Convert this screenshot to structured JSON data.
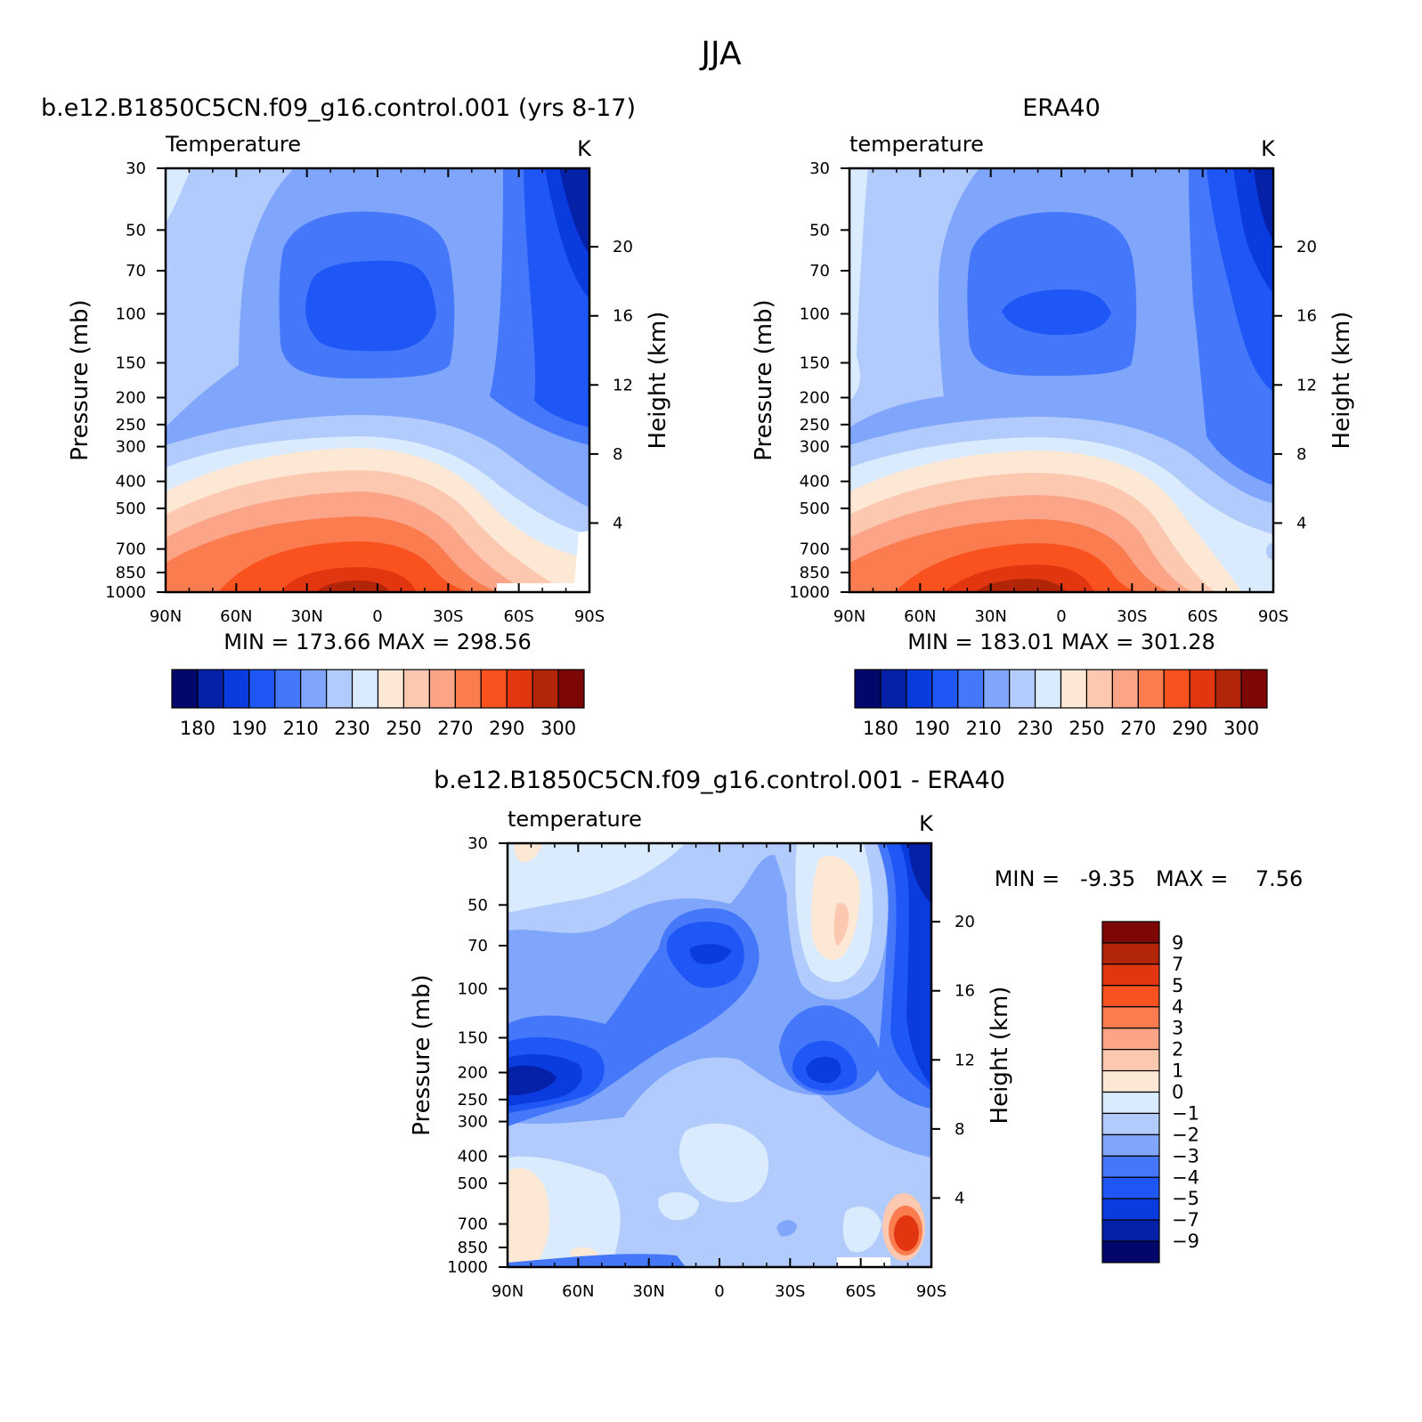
{
  "page_title": "JJA",
  "chart_data": [
    {
      "type": "heatmap",
      "id": "model",
      "case_title": "b.e12.B1850C5CN.f09_g16.control.001 (yrs 8-17)",
      "variable_label": "Temperature",
      "units_label": "K",
      "ylabel": "Pressure (mb)",
      "y2label": "Height (km)",
      "x_ticks": [
        "90N",
        "60N",
        "30N",
        "0",
        "30S",
        "60S",
        "90S"
      ],
      "y_ticks": [
        "30",
        "50",
        "70",
        "100",
        "150",
        "200",
        "250",
        "300",
        "400",
        "500",
        "700",
        "850",
        "1000"
      ],
      "y2_ticks": [
        "20",
        "16",
        "12",
        "8",
        "4"
      ],
      "stats_text": "MIN = 173.66   MAX = 298.56",
      "min": 173.66,
      "max": 298.56,
      "colorbar_labels": [
        "180",
        "190",
        "210",
        "230",
        "250",
        "270",
        "290",
        "300"
      ],
      "colorbar_colors": [
        "#03066a",
        "#0521a8",
        "#0a3bde",
        "#1f56f6",
        "#4477fa",
        "#80a6fc",
        "#b2cbfd",
        "#d9ebfd",
        "#fde7d5",
        "#fcc9b0",
        "#fba487",
        "#fa7c4f",
        "#f9521f",
        "#e1360f",
        "#b32509",
        "#7d0705"
      ],
      "colorbar_levels": [
        180,
        185,
        190,
        200,
        210,
        220,
        230,
        240,
        250,
        260,
        270,
        280,
        290,
        295,
        300
      ]
    },
    {
      "type": "heatmap",
      "id": "obs",
      "case_title": "ERA40",
      "variable_label": "temperature",
      "units_label": "K",
      "ylabel": "Pressure (mb)",
      "y2label": "Height (km)",
      "x_ticks": [
        "90N",
        "60N",
        "30N",
        "0",
        "30S",
        "60S",
        "90S"
      ],
      "y_ticks": [
        "30",
        "50",
        "70",
        "100",
        "150",
        "200",
        "250",
        "300",
        "400",
        "500",
        "700",
        "850",
        "1000"
      ],
      "y2_ticks": [
        "20",
        "16",
        "12",
        "8",
        "4"
      ],
      "stats_text": "MIN = 183.01   MAX = 301.28",
      "min": 183.01,
      "max": 301.28,
      "colorbar_labels": [
        "180",
        "190",
        "210",
        "230",
        "250",
        "270",
        "290",
        "300"
      ],
      "colorbar_colors": [
        "#03066a",
        "#0521a8",
        "#0a3bde",
        "#1f56f6",
        "#4477fa",
        "#80a6fc",
        "#b2cbfd",
        "#d9ebfd",
        "#fde7d5",
        "#fcc9b0",
        "#fba487",
        "#fa7c4f",
        "#f9521f",
        "#e1360f",
        "#b32509",
        "#7d0705"
      ],
      "colorbar_levels": [
        180,
        185,
        190,
        200,
        210,
        220,
        230,
        240,
        250,
        260,
        270,
        280,
        290,
        295,
        300
      ]
    },
    {
      "type": "heatmap",
      "id": "diff",
      "case_title": "b.e12.B1850C5CN.f09_g16.control.001 - ERA40",
      "variable_label": "temperature",
      "units_label": "K",
      "ylabel": "Pressure (mb)",
      "y2label": "Height (km)",
      "x_ticks": [
        "90N",
        "60N",
        "30N",
        "0",
        "30S",
        "60S",
        "90S"
      ],
      "y_ticks": [
        "30",
        "50",
        "70",
        "100",
        "150",
        "200",
        "250",
        "300",
        "400",
        "500",
        "700",
        "850",
        "1000"
      ],
      "y2_ticks": [
        "20",
        "16",
        "12",
        "8",
        "4"
      ],
      "stats_text": "MIN =   -9.35   MAX =    7.56",
      "min": -9.35,
      "max": 7.56,
      "colorbar_labels": [
        "9",
        "7",
        "5",
        "4",
        "3",
        "2",
        "1",
        "0",
        "-1",
        "-2",
        "-3",
        "-4",
        "-5",
        "-7",
        "-9"
      ],
      "colorbar_colors": [
        "#7d0705",
        "#b32509",
        "#e1360f",
        "#f9521f",
        "#fa7c4f",
        "#fba487",
        "#fcc9b0",
        "#fde7d5",
        "#d9ebfd",
        "#b2cbfd",
        "#80a6fc",
        "#4477fa",
        "#1f56f6",
        "#0a3bde",
        "#0521a8",
        "#03066a"
      ],
      "colorbar_levels": [
        9,
        7,
        5,
        4,
        3,
        2,
        1,
        0,
        -1,
        -2,
        -3,
        -4,
        -5,
        -7,
        -9
      ]
    }
  ]
}
